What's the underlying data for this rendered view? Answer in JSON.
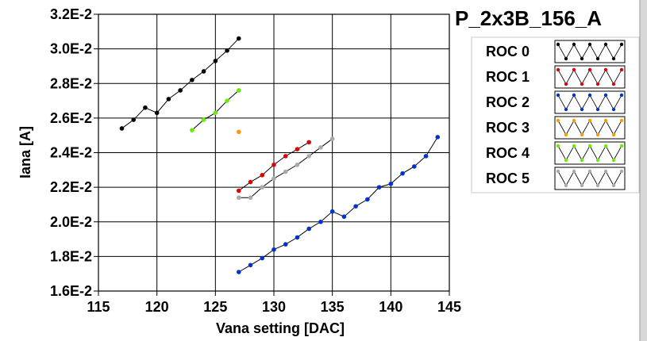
{
  "chart_data": {
    "type": "line",
    "title": "P_2x3B_156_A",
    "xlabel": "Vana setting [DAC]",
    "ylabel": "Iana [A]",
    "xlim": [
      115,
      145
    ],
    "ylim": [
      0.016,
      0.032
    ],
    "grid": true,
    "legend_position": "right",
    "x_tick_labels": [
      "115",
      "120",
      "125",
      "130",
      "135",
      "140",
      "145"
    ],
    "y_tick_labels": [
      "1.6E-2",
      "1.8E-2",
      "2.0E-2",
      "2.2E-2",
      "2.4E-2",
      "2.6E-2",
      "2.8E-2",
      "3.0E-2",
      "3.2E-2"
    ],
    "series": [
      {
        "name": "ROC 0",
        "color": "#000000",
        "x": [
          117,
          118,
          119,
          120,
          121,
          122,
          123,
          124,
          125,
          126,
          127
        ],
        "y": [
          0.0254,
          0.0259,
          0.0266,
          0.0263,
          0.0271,
          0.0276,
          0.0282,
          0.0287,
          0.0293,
          0.0299,
          0.0306
        ]
      },
      {
        "name": "ROC 1",
        "color": "#e00000",
        "x": [
          127,
          128,
          129,
          130,
          131,
          132,
          133
        ],
        "y": [
          0.0218,
          0.0223,
          0.0227,
          0.0233,
          0.0238,
          0.0242,
          0.0246
        ]
      },
      {
        "name": "ROC 2",
        "color": "#0033cc",
        "x": [
          127,
          128,
          129,
          130,
          131,
          132,
          133,
          134,
          135,
          136,
          137,
          138,
          139,
          140,
          141,
          142,
          143,
          144
        ],
        "y": [
          0.0171,
          0.0175,
          0.0179,
          0.0184,
          0.0187,
          0.0191,
          0.0196,
          0.02,
          0.0206,
          0.0203,
          0.0209,
          0.0213,
          0.022,
          0.0222,
          0.0228,
          0.0232,
          0.0238,
          0.0249
        ]
      },
      {
        "name": "ROC 3",
        "color": "#ff9900",
        "x": [
          127
        ],
        "y": [
          0.0252
        ]
      },
      {
        "name": "ROC 4",
        "color": "#66ee00",
        "x": [
          123,
          124,
          125,
          126,
          127
        ],
        "y": [
          0.0253,
          0.0259,
          0.0263,
          0.027,
          0.0276
        ]
      },
      {
        "name": "ROC 5",
        "color": "#aaaaaa",
        "x": [
          127,
          128,
          129,
          130,
          131,
          132,
          133,
          134,
          135
        ],
        "y": [
          0.0214,
          0.0214,
          0.022,
          0.0225,
          0.0229,
          0.0233,
          0.0238,
          0.0243,
          0.0248
        ]
      }
    ]
  }
}
